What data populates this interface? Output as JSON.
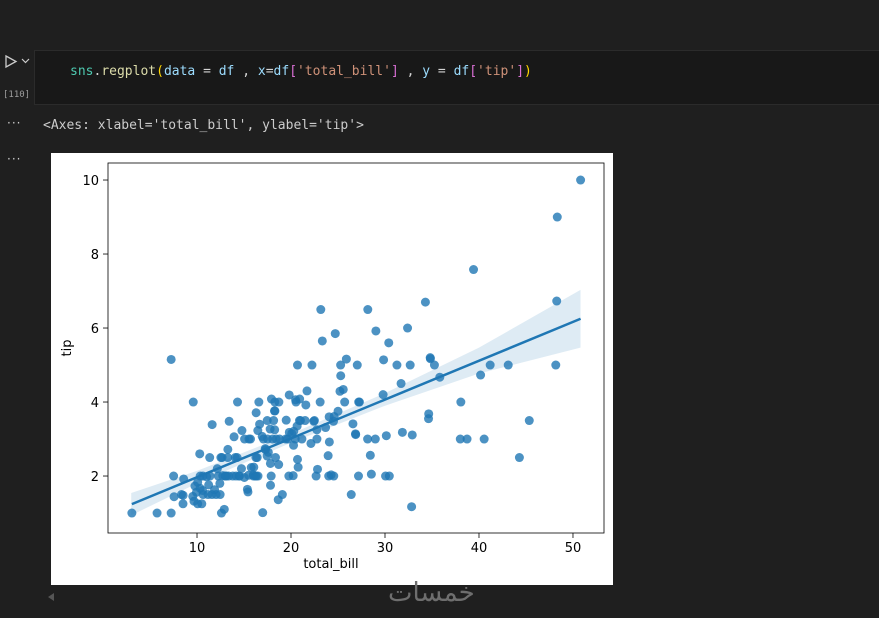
{
  "cell": {
    "execution_count": "[110]",
    "code_tokens": [
      {
        "text": "sns",
        "color": "#4ec9b0"
      },
      {
        "text": ".",
        "color": "#d4d4d4"
      },
      {
        "text": "regplot",
        "color": "#dcdcaa"
      },
      {
        "text": "(",
        "color": "#ffd700"
      },
      {
        "text": "data",
        "color": "#9cdcfe"
      },
      {
        "text": " = ",
        "color": "#d4d4d4"
      },
      {
        "text": "df",
        "color": "#9cdcfe"
      },
      {
        "text": " , ",
        "color": "#d4d4d4"
      },
      {
        "text": "x",
        "color": "#9cdcfe"
      },
      {
        "text": "=",
        "color": "#d4d4d4"
      },
      {
        "text": "df",
        "color": "#9cdcfe"
      },
      {
        "text": "[",
        "color": "#da70d6"
      },
      {
        "text": "'total_bill'",
        "color": "#ce9178"
      },
      {
        "text": "]",
        "color": "#da70d6"
      },
      {
        "text": " , ",
        "color": "#d4d4d4"
      },
      {
        "text": "y",
        "color": "#9cdcfe"
      },
      {
        "text": " = ",
        "color": "#d4d4d4"
      },
      {
        "text": "df",
        "color": "#9cdcfe"
      },
      {
        "text": "[",
        "color": "#da70d6"
      },
      {
        "text": "'tip'",
        "color": "#ce9178"
      },
      {
        "text": "]",
        "color": "#da70d6"
      },
      {
        "text": ")",
        "color": "#ffd700"
      }
    ],
    "output_text": "<Axes: xlabel='total_bill', ylabel='tip'>"
  },
  "watermark": "خمسات",
  "chart_data": {
    "type": "scatter",
    "xlabel": "total_bill",
    "ylabel": "tip",
    "color": "#1f77b4",
    "xlim": [
      0.53,
      53.3
    ],
    "ylim": [
      0.46,
      10.46
    ],
    "xticks": [
      10,
      20,
      30,
      40,
      50
    ],
    "yticks": [
      2,
      4,
      6,
      8,
      10
    ],
    "x": [
      3.07,
      5.75,
      7.25,
      7.25,
      7.51,
      7.56,
      8.35,
      8.51,
      8.52,
      8.58,
      9.55,
      9.6,
      9.68,
      9.78,
      9.94,
      10.07,
      10.07,
      10.29,
      10.33,
      10.34,
      10.51,
      10.59,
      10.63,
      10.65,
      11.02,
      11.17,
      11.24,
      11.35,
      11.38,
      11.59,
      11.61,
      11.87,
      12.03,
      12.16,
      12.26,
      12.43,
      12.46,
      12.54,
      12.6,
      12.66,
      12.74,
      12.9,
      13,
      13.03,
      13.13,
      13.27,
      13.28,
      13.37,
      13.42,
      13.81,
      13.94,
      14.07,
      14.15,
      14.26,
      14.31,
      14.48,
      14.52,
      14.73,
      14.78,
      15.04,
      15.06,
      15.36,
      15.42,
      15.48,
      15.53,
      15.69,
      15.77,
      15.98,
      16,
      16.04,
      16.21,
      16.27,
      16.29,
      16.31,
      16.4,
      16.47,
      16.49,
      16.58,
      16.66,
      16.93,
      16.99,
      17.07,
      17.26,
      17.29,
      17.46,
      17.47,
      17.51,
      17.59,
      17.78,
      17.81,
      17.82,
      17.89,
      17.92,
      18.04,
      18.15,
      18.24,
      18.26,
      18.28,
      18.29,
      18.35,
      18.43,
      18.64,
      18.69,
      18.71,
      18.78,
      19.08,
      19.44,
      19.49,
      19.65,
      19.77,
      19.81,
      19.82,
      20.08,
      20.23,
      20.27,
      20.29,
      20.45,
      20.49,
      20.53,
      20.65,
      20.69,
      20.69,
      20.76,
      20.9,
      20.92,
      21.01,
      21.16,
      21.5,
      21.58,
      21.7,
      22.12,
      22.23,
      22.42,
      22.49,
      22.67,
      22.75,
      22.76,
      22.82,
      23.1,
      23.17,
      23.33,
      23.68,
      23.95,
      24.01,
      24.06,
      24.08,
      24.27,
      24.52,
      24.55,
      24.59,
      24.71,
      25,
      25.21,
      25.28,
      25.29,
      25.56,
      25.71,
      25.89,
      26.41,
      26.59,
      26.86,
      26.88,
      27.05,
      27.18,
      27.2,
      27.28,
      28.15,
      28.17,
      28.44,
      28.55,
      28.97,
      29.03,
      29.8,
      29.85,
      30.06,
      30.14,
      30.4,
      30.46,
      31.27,
      31.71,
      31.85,
      32.4,
      32.68,
      32.83,
      32.9,
      34.3,
      34.63,
      34.65,
      34.81,
      34.83,
      35.26,
      35.83,
      38.01,
      38.07,
      38.73,
      39.42,
      40.17,
      40.55,
      41.19,
      43.11,
      44.3,
      45.35,
      48.17,
      48.27,
      48.33,
      50.81
    ],
    "values": [
      1,
      1,
      1,
      5.15,
      2,
      1.44,
      1.5,
      1.25,
      1.48,
      1.92,
      1.45,
      4,
      1.32,
      1.73,
      1.56,
      1.25,
      1.83,
      2.6,
      1.67,
      2,
      1.25,
      1.61,
      2,
      1.5,
      1.98,
      1.5,
      1.76,
      2.5,
      2,
      1.5,
      3.39,
      1.63,
      1.5,
      2.2,
      2,
      1.8,
      1.5,
      2.5,
      1,
      2.5,
      2.01,
      1.1,
      2,
      2,
      2,
      2.5,
      2.72,
      2,
      3.48,
      2,
      3.06,
      2.5,
      2,
      2.5,
      4,
      2,
      2,
      2.2,
      3.23,
      1.96,
      3,
      1.64,
      1.57,
      2.02,
      3,
      3,
      2.23,
      2.03,
      2,
      2.24,
      2,
      2.5,
      3.71,
      2,
      2.5,
      3.23,
      2,
      4,
      3.4,
      3.07,
      1.01,
      3,
      2.74,
      2.71,
      2.54,
      3.5,
      3,
      2.64,
      3.27,
      2.34,
      1.75,
      2,
      4.08,
      3,
      3.5,
      3.76,
      3.25,
      4,
      3.76,
      2.5,
      3,
      1.36,
      2.31,
      4,
      3,
      1.5,
      3,
      3.51,
      3,
      2,
      4.19,
      3.18,
      3.15,
      2.01,
      2.83,
      3.21,
      3,
      4.06,
      4,
      3.35,
      2.45,
      5,
      2.24,
      3.5,
      4.08,
      3.5,
      3,
      3.5,
      3.92,
      4.3,
      2.88,
      5,
      3.48,
      3.5,
      2,
      3.25,
      3,
      2.18,
      4,
      6.5,
      5.65,
      3.31,
      2.55,
      2,
      3.6,
      2.92,
      2.03,
      3.48,
      2,
      3.61,
      5.85,
      3.75,
      4.29,
      5,
      4.71,
      4.34,
      4,
      5.16,
      1.5,
      3.41,
      3.14,
      3.12,
      5,
      2,
      4,
      4,
      3,
      6.5,
      2.56,
      2.05,
      3,
      5.92,
      4.2,
      5.14,
      2,
      3.09,
      5.6,
      2,
      5,
      4.5,
      3.18,
      6,
      5,
      1.17,
      3.11,
      6.7,
      3.55,
      3.68,
      5.2,
      5.17,
      5,
      4.67,
      3,
      4,
      3,
      7.58,
      4.73,
      3,
      5,
      5,
      2.5,
      3.5,
      5,
      6.73,
      9,
      10
    ],
    "regression": {
      "x": [
        3.07,
        50.81
      ],
      "y": [
        1.24,
        6.25
      ]
    },
    "ci": {
      "x": [
        3,
        10,
        20,
        30,
        40,
        50.8
      ],
      "lower": [
        0.94,
        1.8,
        2.9,
        3.9,
        4.77,
        5.47
      ],
      "upper": [
        1.54,
        2.14,
        3.14,
        4.24,
        5.47,
        7.03
      ]
    }
  }
}
